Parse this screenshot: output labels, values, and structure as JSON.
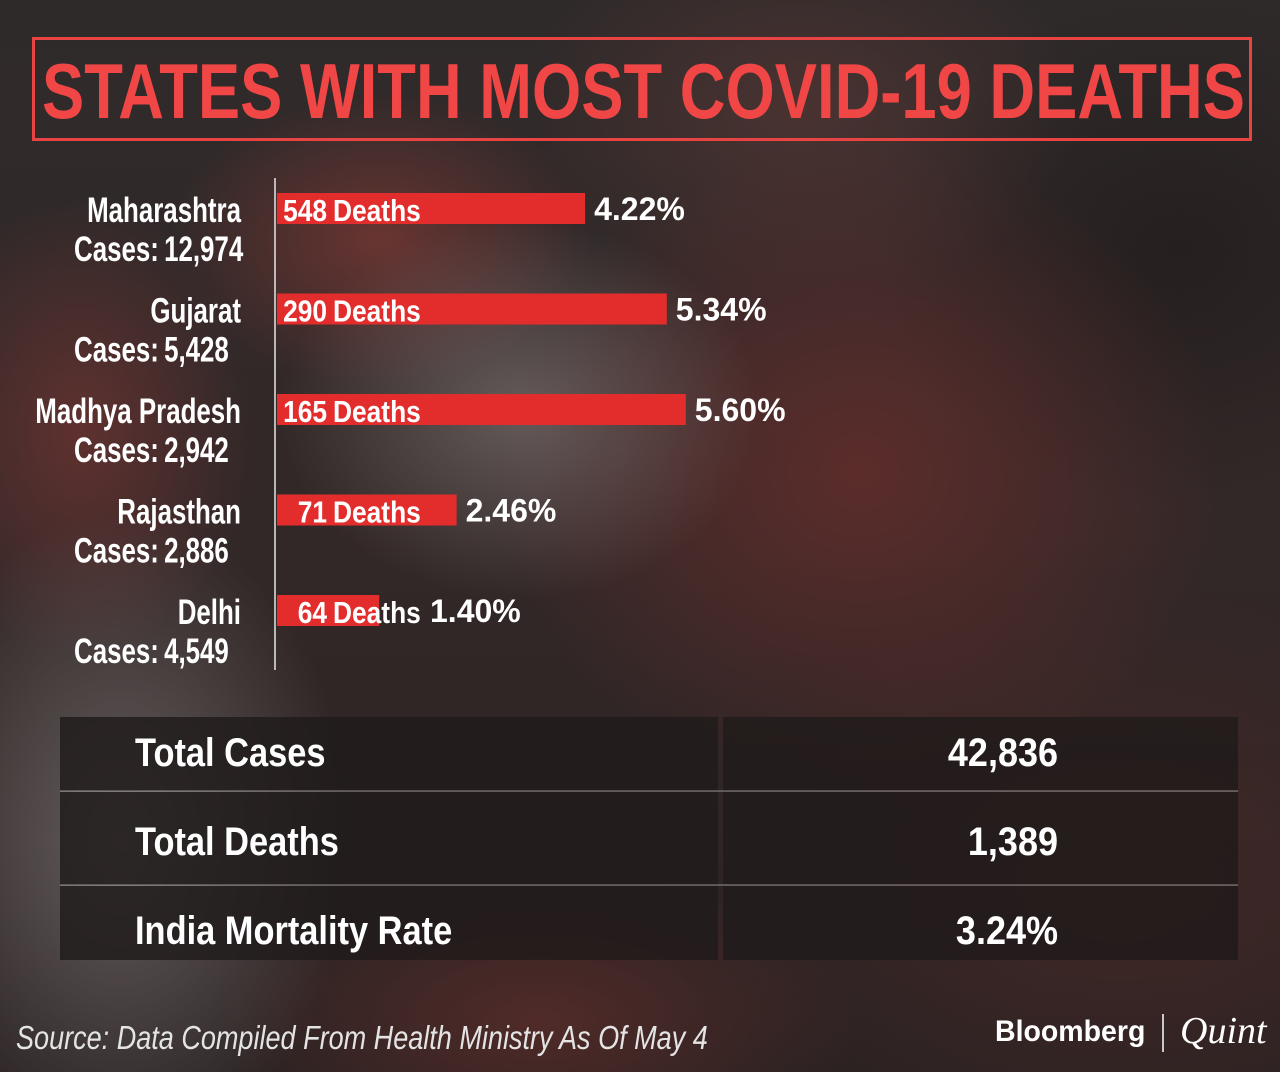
{
  "colors": {
    "title": "#f04646",
    "bar": "#e32d2d",
    "text": "#ffffff"
  },
  "chart_data": {
    "type": "bar",
    "title": "STATES WITH MOST COVID-19 DEATHS",
    "categories": [
      "Maharashtra",
      "Gujarat",
      "Madhya Pradesh",
      "Rajasthan",
      "Delhi"
    ],
    "cases_label": "Cases:",
    "cases": [
      "12,974",
      "5,428",
      "2,942",
      "2,886",
      "4,549"
    ],
    "deaths": [
      548,
      290,
      165,
      71,
      64
    ],
    "deaths_suffix": "Deaths",
    "mortality_pct": [
      4.22,
      5.34,
      5.6,
      2.46,
      1.4
    ],
    "value_labels": [
      "4.22%",
      "5.34%",
      "5.60%",
      "2.46%",
      "1.40%"
    ],
    "xlim": [
      0,
      13
    ]
  },
  "summary": {
    "rows": [
      {
        "label": "Total Cases",
        "value": "42,836"
      },
      {
        "label": "Total Deaths",
        "value": "1,389"
      },
      {
        "label": "India Mortality Rate",
        "value": "3.24%"
      }
    ]
  },
  "footer": {
    "source": "Source: Data Compiled From Health Ministry As Of May 4",
    "logo_left": "Bloomberg",
    "logo_right": "Quint"
  }
}
